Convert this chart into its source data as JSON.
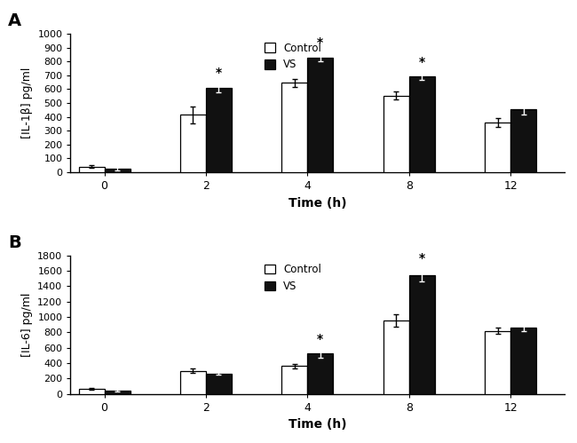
{
  "panel_A": {
    "label": "A",
    "ylabel": "[IL-1β] pg/ml",
    "xlabel": "Time (h)",
    "ylim": [
      0,
      1000
    ],
    "yticks": [
      0,
      100,
      200,
      300,
      400,
      500,
      600,
      700,
      800,
      900,
      1000
    ],
    "time_points": [
      0,
      2,
      4,
      8,
      12
    ],
    "control_values": [
      40,
      415,
      645,
      555,
      360
    ],
    "vs_values": [
      25,
      610,
      830,
      690,
      455
    ],
    "control_errors": [
      10,
      60,
      30,
      30,
      30
    ],
    "vs_errors": [
      15,
      30,
      25,
      25,
      35
    ],
    "significant_vs": [
      false,
      true,
      true,
      true,
      false
    ]
  },
  "panel_B": {
    "label": "B",
    "ylabel": "[IL-6] pg/ml",
    "xlabel": "Time (h)",
    "ylim": [
      0,
      1800
    ],
    "yticks": [
      0,
      200,
      400,
      600,
      800,
      1000,
      1200,
      1400,
      1600,
      1800
    ],
    "time_points": [
      0,
      2,
      4,
      8,
      12
    ],
    "control_values": [
      65,
      300,
      360,
      950,
      820
    ],
    "vs_values": [
      40,
      265,
      520,
      1540,
      860
    ],
    "control_errors": [
      10,
      25,
      30,
      80,
      35
    ],
    "vs_errors": [
      8,
      20,
      50,
      80,
      45
    ],
    "significant_vs": [
      false,
      false,
      true,
      true,
      false
    ]
  },
  "bar_width": 0.38,
  "control_color": "#ffffff",
  "vs_color": "#111111",
  "edge_color": "#000000",
  "background_color": "#ffffff",
  "fig_background": "#ffffff",
  "x_labels": [
    "0",
    "2",
    "4",
    "8",
    "12"
  ],
  "group_positions": [
    0.5,
    2.0,
    3.5,
    5.0,
    6.5
  ]
}
